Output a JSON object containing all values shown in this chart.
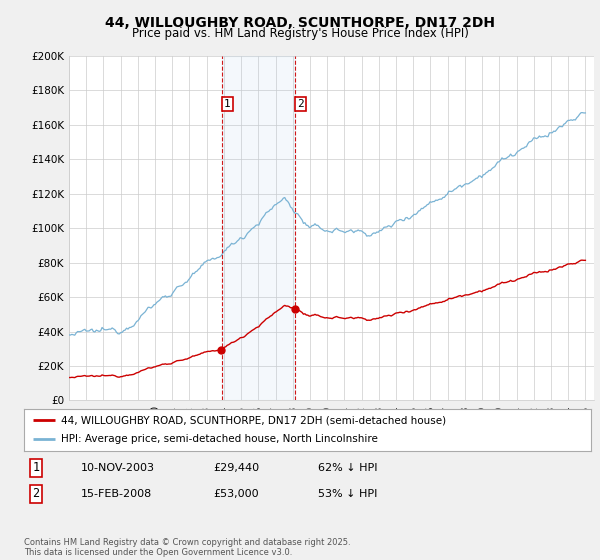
{
  "title": "44, WILLOUGHBY ROAD, SCUNTHORPE, DN17 2DH",
  "subtitle": "Price paid vs. HM Land Registry's House Price Index (HPI)",
  "ylim": [
    0,
    200000
  ],
  "yticks": [
    0,
    20000,
    40000,
    60000,
    80000,
    100000,
    120000,
    140000,
    160000,
    180000,
    200000
  ],
  "ytick_labels": [
    "£0",
    "£20K",
    "£40K",
    "£60K",
    "£80K",
    "£100K",
    "£120K",
    "£140K",
    "£160K",
    "£180K",
    "£200K"
  ],
  "xlim_start": 1995.0,
  "xlim_end": 2025.5,
  "hpi_color": "#7ab3d4",
  "price_color": "#cc0000",
  "marker1_date": 2003.86,
  "marker2_date": 2008.12,
  "marker1_price": 29440,
  "marker2_price": 53000,
  "marker1_label": "10-NOV-2003",
  "marker2_label": "15-FEB-2008",
  "marker1_hpi_pct": "62% ↓ HPI",
  "marker2_hpi_pct": "53% ↓ HPI",
  "legend_line1": "44, WILLOUGHBY ROAD, SCUNTHORPE, DN17 2DH (semi-detached house)",
  "legend_line2": "HPI: Average price, semi-detached house, North Lincolnshire",
  "footnote": "Contains HM Land Registry data © Crown copyright and database right 2025.\nThis data is licensed under the Open Government Licence v3.0.",
  "background_color": "#f0f0f0",
  "plot_bg_color": "#ffffff",
  "grid_color": "#cccccc",
  "title_fontsize": 10,
  "subtitle_fontsize": 8.5,
  "tick_fontsize": 7.5,
  "legend_fontsize": 7.5,
  "table_fontsize": 8,
  "footnote_fontsize": 6
}
